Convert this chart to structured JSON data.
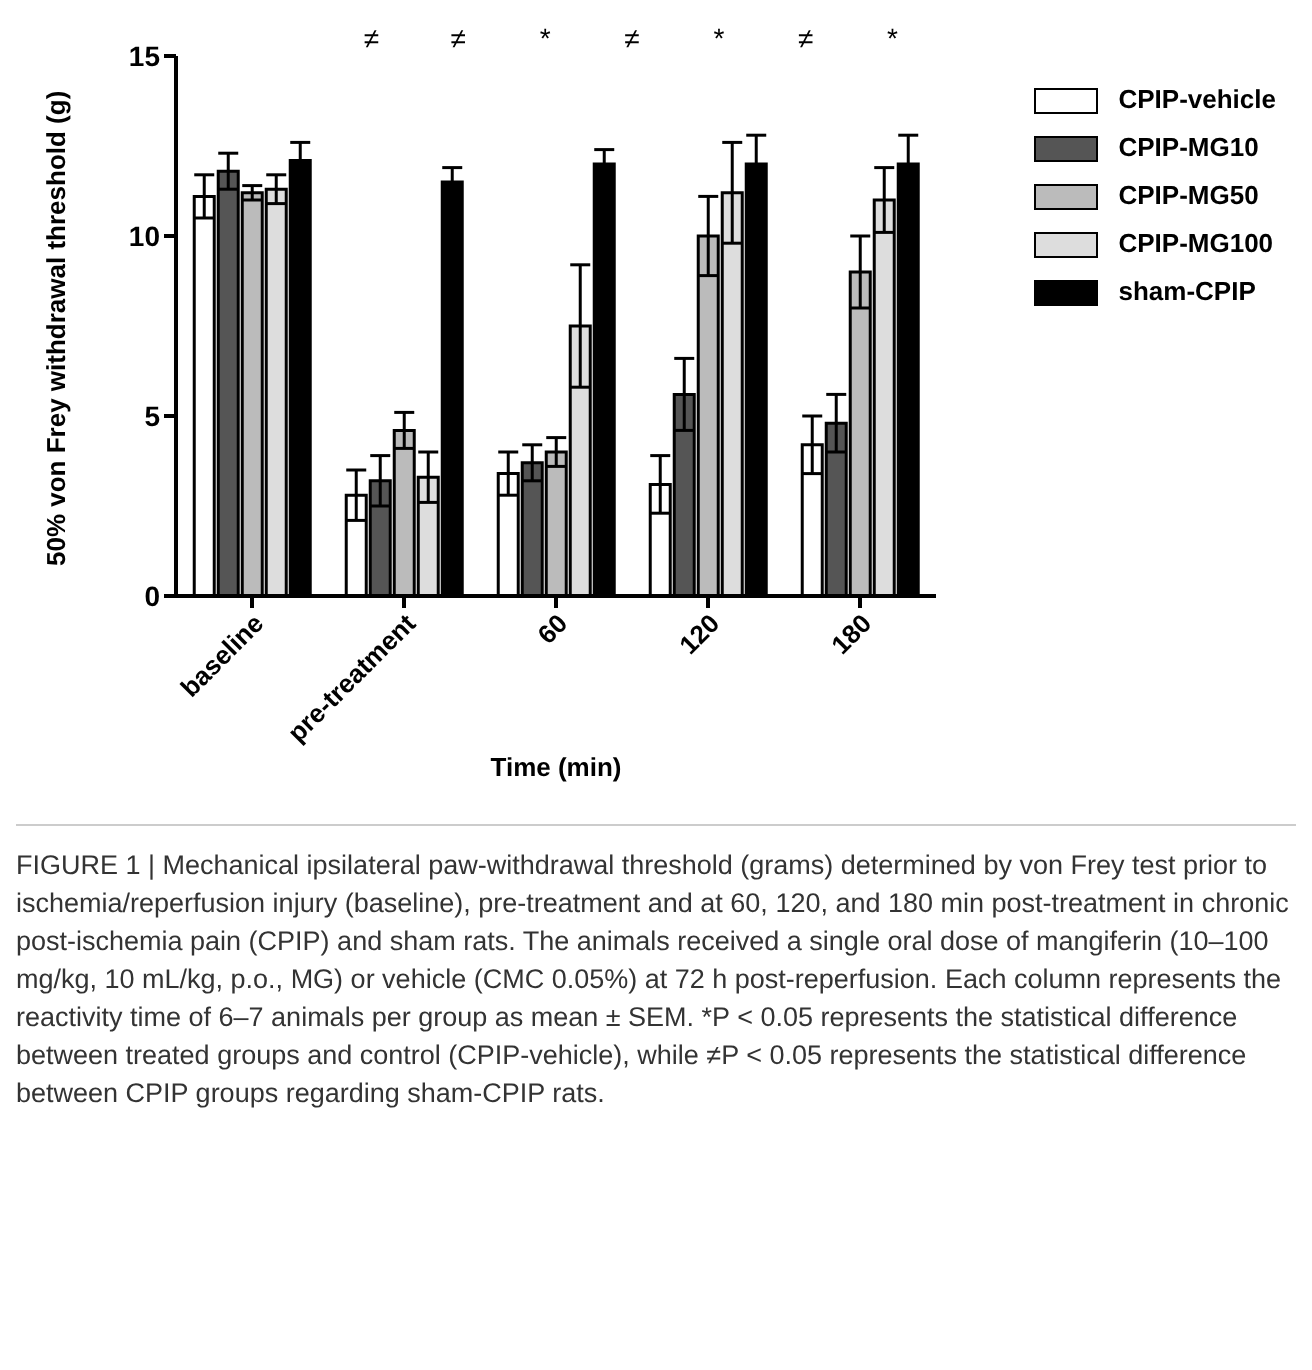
{
  "chart_data": {
    "type": "bar",
    "xlabel": "Time (min)",
    "ylabel": "50% von Frey withdrawal threshold (g)",
    "categories": [
      "baseline",
      "pre-treatment",
      "60",
      "120",
      "180"
    ],
    "series": [
      {
        "name": "CPIP-vehicle",
        "color": "#ffffff",
        "values": [
          11.1,
          2.8,
          3.4,
          3.1,
          4.2
        ],
        "errors": [
          0.6,
          0.7,
          0.6,
          0.8,
          0.8
        ]
      },
      {
        "name": "CPIP-MG10",
        "color": "#555555",
        "values": [
          11.8,
          3.2,
          3.7,
          5.6,
          4.8
        ],
        "errors": [
          0.5,
          0.7,
          0.5,
          1.0,
          0.8
        ]
      },
      {
        "name": "CPIP-MG50",
        "color": "#bbbbbb",
        "values": [
          11.2,
          4.6,
          4.0,
          10.0,
          9.0
        ],
        "errors": [
          0.2,
          0.5,
          0.4,
          1.1,
          1.0
        ]
      },
      {
        "name": "CPIP-MG100",
        "color": "#dddddd",
        "values": [
          11.3,
          3.3,
          7.5,
          11.2,
          11.0
        ],
        "errors": [
          0.4,
          0.7,
          1.7,
          1.4,
          0.9
        ]
      },
      {
        "name": "sham-CPIP",
        "color": "#000000",
        "values": [
          12.1,
          11.5,
          12.0,
          12.0,
          12.0
        ],
        "errors": [
          0.5,
          0.4,
          0.4,
          0.8,
          0.8
        ]
      }
    ],
    "ylim": [
      0,
      15
    ],
    "yticks": [
      0,
      5,
      10,
      15
    ],
    "grid": false,
    "legend": "top right",
    "annotations": [
      "≠",
      "≠",
      "*",
      "≠",
      "*",
      "≠",
      "*",
      "FIGURE 1 | Mechanical ipsilateral paw-withdrawal threshold (grams) determined by von Frey test prior to ischemia/reperfusion injury (baseline), pre-treatment and at 60, 120, and 180 min post-treatment in chronic post-ischemia pain (CPIP) and sham rats. The animals received a single oral dose of mangiferin (10–100 mg/kg, 10 mL/kg, p.o., MG) or vehicle (CMC 0.05%) at 72 h post-reperfusion. Each column represents the reactivity time of 6–7 animals per group as mean ± SEM. *P < 0.05 represents the statistical difference between treated groups and control (CPIP-vehicle), while ≠P < 0.05 represents the statistical difference between CPIP groups regarding sham-CPIP rats."
    ]
  }
}
